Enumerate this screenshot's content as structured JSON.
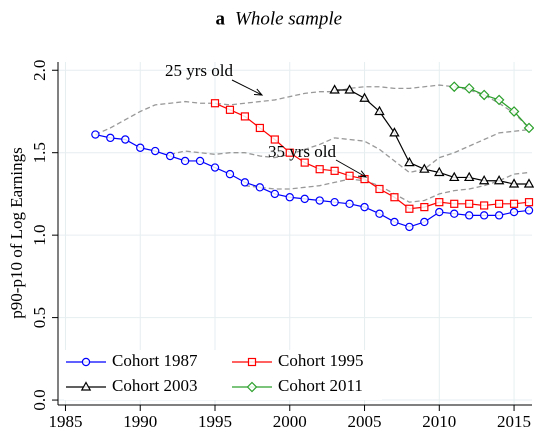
{
  "chart_data": {
    "type": "line",
    "title_label": "a",
    "title": "Whole sample",
    "y_label": "p90-p10 of Log Earnings",
    "xlim": [
      1984.5,
      2016.2
    ],
    "ylim": [
      -0.03,
      2.05
    ],
    "xticks": [
      1985,
      1990,
      1995,
      2000,
      2005,
      2010,
      2015
    ],
    "yticks": [
      {
        "value": 0,
        "label": "0.0"
      },
      {
        "value": 0.5,
        "label": "0.5"
      },
      {
        "value": 1,
        "label": "1.0"
      },
      {
        "value": 1.5,
        "label": "1.5"
      },
      {
        "value": 2,
        "label": "2.0"
      }
    ],
    "grid": true,
    "legend": "lower-left",
    "series": [
      {
        "name": "Cohort 1987",
        "color": "#0000ff",
        "marker": "circle",
        "x": [
          1987,
          1988,
          1989,
          1990,
          1991,
          1992,
          1993,
          1994,
          1995,
          1996,
          1997,
          1998,
          1999,
          2000,
          2001,
          2002,
          2003,
          2004,
          2005,
          2006,
          2007,
          2008,
          2009,
          2010,
          2011,
          2012,
          2013,
          2014,
          2015,
          2016
        ],
        "values": [
          1.61,
          1.59,
          1.58,
          1.53,
          1.51,
          1.48,
          1.45,
          1.45,
          1.41,
          1.37,
          1.32,
          1.29,
          1.25,
          1.23,
          1.22,
          1.21,
          1.2,
          1.19,
          1.17,
          1.13,
          1.08,
          1.05,
          1.08,
          1.14,
          1.13,
          1.12,
          1.12,
          1.12,
          1.14,
          1.15
        ]
      },
      {
        "name": "Cohort 1995",
        "color": "#ff0000",
        "marker": "square",
        "x": [
          1995,
          1996,
          1997,
          1998,
          1999,
          2000,
          2001,
          2002,
          2003,
          2004,
          2005,
          2006,
          2007,
          2008,
          2009,
          2010,
          2011,
          2012,
          2013,
          2014,
          2015,
          2016
        ],
        "values": [
          1.8,
          1.76,
          1.72,
          1.65,
          1.58,
          1.5,
          1.44,
          1.4,
          1.39,
          1.36,
          1.34,
          1.28,
          1.23,
          1.16,
          1.17,
          1.2,
          1.19,
          1.19,
          1.18,
          1.19,
          1.19,
          1.2
        ]
      },
      {
        "name": "Cohort 2003",
        "color": "#000000",
        "marker": "triangle",
        "x": [
          2003,
          2004,
          2005,
          2006,
          2007,
          2008,
          2009,
          2010,
          2011,
          2012,
          2013,
          2014,
          2015,
          2016
        ],
        "values": [
          1.88,
          1.88,
          1.83,
          1.75,
          1.62,
          1.44,
          1.4,
          1.38,
          1.35,
          1.35,
          1.33,
          1.33,
          1.31,
          1.31
        ]
      },
      {
        "name": "Cohort 2011",
        "color": "#2ca02c",
        "marker": "diamond",
        "x": [
          2011,
          2012,
          2013,
          2014,
          2015,
          2016
        ],
        "values": [
          1.9,
          1.89,
          1.85,
          1.82,
          1.75,
          1.65
        ]
      }
    ],
    "dashed_lines": [
      {
        "label": "25 yrs old",
        "color": "#999999",
        "x": [
          1987,
          1988,
          1989,
          1990,
          1991,
          1992,
          1993,
          1994,
          1995,
          1996,
          1997,
          1998,
          1999,
          2000,
          2001,
          2002,
          2003,
          2004,
          2005,
          2006,
          2007,
          2008,
          2009,
          2010,
          2011,
          2012,
          2013,
          2014,
          2015,
          2016
        ],
        "values": [
          1.61,
          1.65,
          1.7,
          1.75,
          1.79,
          1.8,
          1.81,
          1.8,
          1.8,
          1.79,
          1.8,
          1.81,
          1.82,
          1.84,
          1.86,
          1.87,
          1.87,
          1.89,
          1.9,
          1.9,
          1.89,
          1.89,
          1.9,
          1.91,
          1.9,
          1.88,
          1.85,
          1.8,
          1.74,
          1.65
        ]
      },
      {
        "color": "#999999",
        "x": [
          1992,
          1993,
          1994,
          1995,
          1996,
          1997,
          1998,
          1999,
          2000,
          2001,
          2002,
          2003,
          2004,
          2005,
          2006,
          2007,
          2008,
          2009,
          2010,
          2011,
          2012,
          2013,
          2014,
          2015,
          2016
        ],
        "values": [
          1.49,
          1.51,
          1.5,
          1.49,
          1.5,
          1.5,
          1.48,
          1.47,
          1.49,
          1.52,
          1.55,
          1.59,
          1.58,
          1.57,
          1.52,
          1.45,
          1.38,
          1.4,
          1.47,
          1.5,
          1.54,
          1.58,
          1.62,
          1.63,
          1.64
        ]
      },
      {
        "label": "35 yrs old",
        "color": "#999999",
        "x": [
          1997,
          1998,
          1999,
          2000,
          2001,
          2002,
          2003,
          2004,
          2005,
          2006,
          2007,
          2008,
          2009,
          2010,
          2011,
          2012,
          2013,
          2014,
          2015,
          2016
        ],
        "values": [
          1.3,
          1.29,
          1.28,
          1.28,
          1.29,
          1.3,
          1.32,
          1.34,
          1.33,
          1.3,
          1.25,
          1.2,
          1.21,
          1.25,
          1.27,
          1.28,
          1.3,
          1.33,
          1.37,
          1.38
        ]
      }
    ]
  }
}
